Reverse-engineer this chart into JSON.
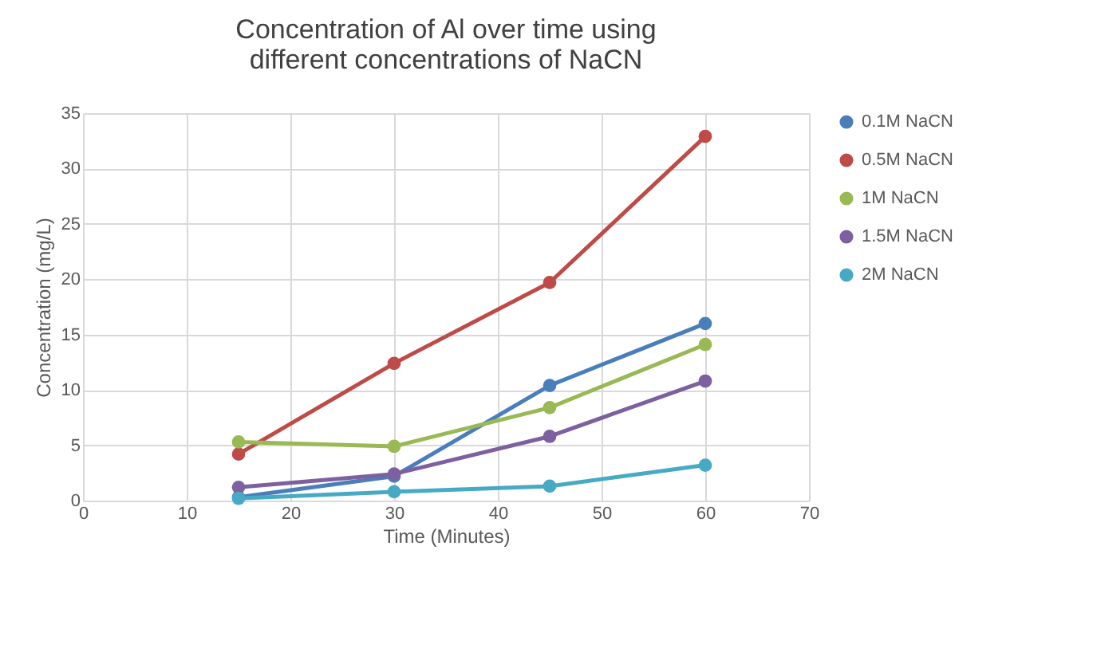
{
  "chart_data": {
    "type": "line",
    "title": "Concentration of Al over time using different concentrations of NaCN",
    "xlabel": "Time (Minutes)",
    "ylabel": "Concentration (mg/L)",
    "x": [
      15,
      30,
      45,
      60
    ],
    "series": [
      {
        "name": "0.1M NaCN",
        "color": "#4a7ebb",
        "values": [
          0.3,
          2.2,
          10.4,
          16.0
        ]
      },
      {
        "name": "0.5M NaCN",
        "color": "#be4b48",
        "values": [
          4.2,
          12.4,
          19.7,
          32.9
        ]
      },
      {
        "name": "1M NaCN",
        "color": "#98b954",
        "values": [
          5.3,
          4.9,
          8.4,
          14.1
        ]
      },
      {
        "name": "1.5M NaCN",
        "color": "#7d60a0",
        "values": [
          1.2,
          2.4,
          5.8,
          10.8
        ]
      },
      {
        "name": "2M NaCN",
        "color": "#46aac5",
        "values": [
          0.2,
          0.8,
          1.3,
          3.2
        ]
      }
    ],
    "xlim": [
      0,
      70
    ],
    "xticks": [
      0,
      10,
      20,
      30,
      40,
      50,
      60,
      70
    ],
    "ylim": [
      0,
      35
    ],
    "yticks": [
      0,
      5,
      10,
      15,
      20,
      25,
      30,
      35
    ],
    "grid": true,
    "legend": "right",
    "marker": "circle",
    "line_style": "solid"
  }
}
